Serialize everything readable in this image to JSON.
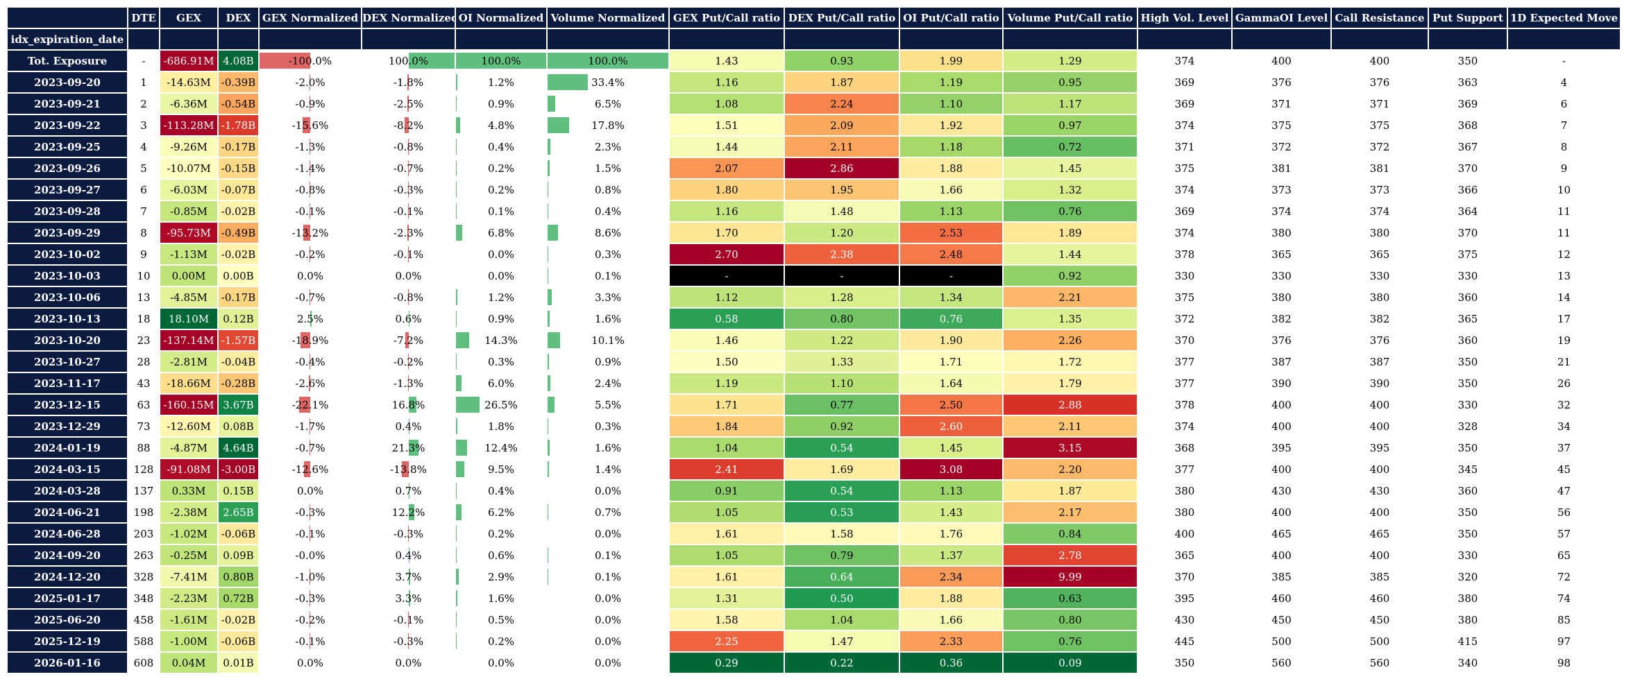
{
  "table": {
    "index_name": "idx_expiration_date",
    "columns": [
      "DTE",
      "GEX",
      "DEX",
      "GEX Normalized",
      "DEX Normalized",
      "OI Normalized",
      "Volume Normalized",
      "GEX Put/Call ratio",
      "DEX Put/Call ratio",
      "OI Put/Call ratio",
      "Volume Put/Call ratio",
      "High Vol. Level",
      "GammaOI Level",
      "Call Resistance",
      "Put Support",
      "1D Expected Move"
    ],
    "rows": [
      {
        "idx": "Tot. Exposure",
        "dte": "-",
        "gex": "-686.91M",
        "dex": "4.08B",
        "gexn": "-100.0%",
        "dexn": "100.0%",
        "oin": "100.0%",
        "voln": "100.0%",
        "gpc": "1.43",
        "dpc": "0.93",
        "opc": "1.99",
        "vpc": "1.29",
        "hvl": "374",
        "goi": "400",
        "cr": "400",
        "ps": "350",
        "em": "-",
        "gexv": -686.91,
        "dexv": 4.08,
        "gexnv": -100.0,
        "dexnv": 100.0,
        "oinv": 100.0,
        "volnv": 100.0,
        "gpcv": 1.43,
        "dpcv": 0.93,
        "opcv": 1.99,
        "vpcv": 1.29
      },
      {
        "idx": "2023-09-20",
        "dte": "1",
        "gex": "-14.63M",
        "dex": "-0.39B",
        "gexn": "-2.0%",
        "dexn": "-1.8%",
        "oin": "1.2%",
        "voln": "33.4%",
        "gpc": "1.16",
        "dpc": "1.87",
        "opc": "1.19",
        "vpc": "0.95",
        "hvl": "369",
        "goi": "376",
        "cr": "376",
        "ps": "363",
        "em": "4",
        "gexv": -14.63,
        "dexv": -0.39,
        "gexnv": -2.0,
        "dexnv": -1.8,
        "oinv": 1.2,
        "volnv": 33.4,
        "gpcv": 1.16,
        "dpcv": 1.87,
        "opcv": 1.19,
        "vpcv": 0.95
      },
      {
        "idx": "2023-09-21",
        "dte": "2",
        "gex": "-6.36M",
        "dex": "-0.54B",
        "gexn": "-0.9%",
        "dexn": "-2.5%",
        "oin": "0.9%",
        "voln": "6.5%",
        "gpc": "1.08",
        "dpc": "2.24",
        "opc": "1.10",
        "vpc": "1.17",
        "hvl": "369",
        "goi": "371",
        "cr": "371",
        "ps": "369",
        "em": "6",
        "gexv": -6.36,
        "dexv": -0.54,
        "gexnv": -0.9,
        "dexnv": -2.5,
        "oinv": 0.9,
        "volnv": 6.5,
        "gpcv": 1.08,
        "dpcv": 2.24,
        "opcv": 1.1,
        "vpcv": 1.17
      },
      {
        "idx": "2023-09-22",
        "dte": "3",
        "gex": "-113.28M",
        "dex": "-1.78B",
        "gexn": "-15.6%",
        "dexn": "-8.2%",
        "oin": "4.8%",
        "voln": "17.8%",
        "gpc": "1.51",
        "dpc": "2.09",
        "opc": "1.92",
        "vpc": "0.97",
        "hvl": "374",
        "goi": "375",
        "cr": "375",
        "ps": "368",
        "em": "7",
        "gexv": -113.28,
        "dexv": -1.78,
        "gexnv": -15.6,
        "dexnv": -8.2,
        "oinv": 4.8,
        "volnv": 17.8,
        "gpcv": 1.51,
        "dpcv": 2.09,
        "opcv": 1.92,
        "vpcv": 0.97
      },
      {
        "idx": "2023-09-25",
        "dte": "4",
        "gex": "-9.26M",
        "dex": "-0.17B",
        "gexn": "-1.3%",
        "dexn": "-0.8%",
        "oin": "0.4%",
        "voln": "2.3%",
        "gpc": "1.44",
        "dpc": "2.11",
        "opc": "1.18",
        "vpc": "0.72",
        "hvl": "371",
        "goi": "372",
        "cr": "372",
        "ps": "367",
        "em": "8",
        "gexv": -9.26,
        "dexv": -0.17,
        "gexnv": -1.3,
        "dexnv": -0.8,
        "oinv": 0.4,
        "volnv": 2.3,
        "gpcv": 1.44,
        "dpcv": 2.11,
        "opcv": 1.18,
        "vpcv": 0.72
      },
      {
        "idx": "2023-09-26",
        "dte": "5",
        "gex": "-10.07M",
        "dex": "-0.15B",
        "gexn": "-1.4%",
        "dexn": "-0.7%",
        "oin": "0.2%",
        "voln": "1.5%",
        "gpc": "2.07",
        "dpc": "2.86",
        "opc": "1.88",
        "vpc": "1.45",
        "hvl": "375",
        "goi": "381",
        "cr": "381",
        "ps": "370",
        "em": "9",
        "gexv": -10.07,
        "dexv": -0.15,
        "gexnv": -1.4,
        "dexnv": -0.7,
        "oinv": 0.2,
        "volnv": 1.5,
        "gpcv": 2.07,
        "dpcv": 2.86,
        "opcv": 1.88,
        "vpcv": 1.45
      },
      {
        "idx": "2023-09-27",
        "dte": "6",
        "gex": "-6.03M",
        "dex": "-0.07B",
        "gexn": "-0.8%",
        "dexn": "-0.3%",
        "oin": "0.2%",
        "voln": "0.8%",
        "gpc": "1.80",
        "dpc": "1.95",
        "opc": "1.66",
        "vpc": "1.32",
        "hvl": "374",
        "goi": "373",
        "cr": "373",
        "ps": "366",
        "em": "10",
        "gexv": -6.03,
        "dexv": -0.07,
        "gexnv": -0.8,
        "dexnv": -0.3,
        "oinv": 0.2,
        "volnv": 0.8,
        "gpcv": 1.8,
        "dpcv": 1.95,
        "opcv": 1.66,
        "vpcv": 1.32
      },
      {
        "idx": "2023-09-28",
        "dte": "7",
        "gex": "-0.85M",
        "dex": "-0.02B",
        "gexn": "-0.1%",
        "dexn": "-0.1%",
        "oin": "0.1%",
        "voln": "0.4%",
        "gpc": "1.16",
        "dpc": "1.48",
        "opc": "1.13",
        "vpc": "0.76",
        "hvl": "369",
        "goi": "374",
        "cr": "374",
        "ps": "364",
        "em": "11",
        "gexv": -0.85,
        "dexv": -0.02,
        "gexnv": -0.1,
        "dexnv": -0.1,
        "oinv": 0.1,
        "volnv": 0.4,
        "gpcv": 1.16,
        "dpcv": 1.48,
        "opcv": 1.13,
        "vpcv": 0.76
      },
      {
        "idx": "2023-09-29",
        "dte": "8",
        "gex": "-95.73M",
        "dex": "-0.49B",
        "gexn": "-13.2%",
        "dexn": "-2.3%",
        "oin": "6.8%",
        "voln": "8.6%",
        "gpc": "1.70",
        "dpc": "1.20",
        "opc": "2.53",
        "vpc": "1.89",
        "hvl": "374",
        "goi": "380",
        "cr": "380",
        "ps": "370",
        "em": "11",
        "gexv": -95.73,
        "dexv": -0.49,
        "gexnv": -13.2,
        "dexnv": -2.3,
        "oinv": 6.8,
        "volnv": 8.6,
        "gpcv": 1.7,
        "dpcv": 1.2,
        "opcv": 2.53,
        "vpcv": 1.89
      },
      {
        "idx": "2023-10-02",
        "dte": "9",
        "gex": "-1.13M",
        "dex": "-0.02B",
        "gexn": "-0.2%",
        "dexn": "-0.1%",
        "oin": "0.0%",
        "voln": "0.3%",
        "gpc": "2.70",
        "dpc": "2.38",
        "opc": "2.48",
        "vpc": "1.44",
        "hvl": "378",
        "goi": "365",
        "cr": "365",
        "ps": "375",
        "em": "12",
        "gexv": -1.13,
        "dexv": -0.02,
        "gexnv": -0.2,
        "dexnv": -0.1,
        "oinv": 0.0,
        "volnv": 0.3,
        "gpcv": 2.7,
        "dpcv": 2.38,
        "opcv": 2.48,
        "vpcv": 1.44
      },
      {
        "idx": "2023-10-03",
        "dte": "10",
        "gex": "0.00M",
        "dex": "0.00B",
        "gexn": "0.0%",
        "dexn": "0.0%",
        "oin": "0.0%",
        "voln": "0.1%",
        "gpc": "-",
        "dpc": "-",
        "opc": "-",
        "vpc": "0.92",
        "hvl": "330",
        "goi": "330",
        "cr": "330",
        "ps": "330",
        "em": "13",
        "gexv": 0.0,
        "dexv": 0.0,
        "gexnv": 0.0,
        "dexnv": 0.0,
        "oinv": 0.0,
        "volnv": 0.1,
        "gpcv": null,
        "dpcv": null,
        "opcv": null,
        "vpcv": 0.92
      },
      {
        "idx": "2023-10-06",
        "dte": "13",
        "gex": "-4.85M",
        "dex": "-0.17B",
        "gexn": "-0.7%",
        "dexn": "-0.8%",
        "oin": "1.2%",
        "voln": "3.3%",
        "gpc": "1.12",
        "dpc": "1.28",
        "opc": "1.34",
        "vpc": "2.21",
        "hvl": "375",
        "goi": "380",
        "cr": "380",
        "ps": "360",
        "em": "14",
        "gexv": -4.85,
        "dexv": -0.17,
        "gexnv": -0.7,
        "dexnv": -0.8,
        "oinv": 1.2,
        "volnv": 3.3,
        "gpcv": 1.12,
        "dpcv": 1.28,
        "opcv": 1.34,
        "vpcv": 2.21
      },
      {
        "idx": "2023-10-13",
        "dte": "18",
        "gex": "18.10M",
        "dex": "0.12B",
        "gexn": "2.5%",
        "dexn": "0.6%",
        "oin": "0.9%",
        "voln": "1.6%",
        "gpc": "0.58",
        "dpc": "0.80",
        "opc": "0.76",
        "vpc": "1.35",
        "hvl": "372",
        "goi": "382",
        "cr": "382",
        "ps": "365",
        "em": "17",
        "gexv": 18.1,
        "dexv": 0.12,
        "gexnv": 2.5,
        "dexnv": 0.6,
        "oinv": 0.9,
        "volnv": 1.6,
        "gpcv": 0.58,
        "dpcv": 0.8,
        "opcv": 0.76,
        "vpcv": 1.35
      },
      {
        "idx": "2023-10-20",
        "dte": "23",
        "gex": "-137.14M",
        "dex": "-1.57B",
        "gexn": "-18.9%",
        "dexn": "-7.2%",
        "oin": "14.3%",
        "voln": "10.1%",
        "gpc": "1.46",
        "dpc": "1.22",
        "opc": "1.90",
        "vpc": "2.26",
        "hvl": "370",
        "goi": "376",
        "cr": "376",
        "ps": "360",
        "em": "19",
        "gexv": -137.14,
        "dexv": -1.57,
        "gexnv": -18.9,
        "dexnv": -7.2,
        "oinv": 14.3,
        "volnv": 10.1,
        "gpcv": 1.46,
        "dpcv": 1.22,
        "opcv": 1.9,
        "vpcv": 2.26
      },
      {
        "idx": "2023-10-27",
        "dte": "28",
        "gex": "-2.81M",
        "dex": "-0.04B",
        "gexn": "-0.4%",
        "dexn": "-0.2%",
        "oin": "0.3%",
        "voln": "0.9%",
        "gpc": "1.50",
        "dpc": "1.33",
        "opc": "1.71",
        "vpc": "1.72",
        "hvl": "377",
        "goi": "387",
        "cr": "387",
        "ps": "350",
        "em": "21",
        "gexv": -2.81,
        "dexv": -0.04,
        "gexnv": -0.4,
        "dexnv": -0.2,
        "oinv": 0.3,
        "volnv": 0.9,
        "gpcv": 1.5,
        "dpcv": 1.33,
        "opcv": 1.71,
        "vpcv": 1.72
      },
      {
        "idx": "2023-11-17",
        "dte": "43",
        "gex": "-18.66M",
        "dex": "-0.28B",
        "gexn": "-2.6%",
        "dexn": "-1.3%",
        "oin": "6.0%",
        "voln": "2.4%",
        "gpc": "1.19",
        "dpc": "1.10",
        "opc": "1.64",
        "vpc": "1.79",
        "hvl": "377",
        "goi": "390",
        "cr": "390",
        "ps": "350",
        "em": "26",
        "gexv": -18.66,
        "dexv": -0.28,
        "gexnv": -2.6,
        "dexnv": -1.3,
        "oinv": 6.0,
        "volnv": 2.4,
        "gpcv": 1.19,
        "dpcv": 1.1,
        "opcv": 1.64,
        "vpcv": 1.79
      },
      {
        "idx": "2023-12-15",
        "dte": "63",
        "gex": "-160.15M",
        "dex": "3.67B",
        "gexn": "-22.1%",
        "dexn": "16.8%",
        "oin": "26.5%",
        "voln": "5.5%",
        "gpc": "1.71",
        "dpc": "0.77",
        "opc": "2.50",
        "vpc": "2.88",
        "hvl": "378",
        "goi": "400",
        "cr": "400",
        "ps": "330",
        "em": "32",
        "gexv": -160.15,
        "dexv": 3.67,
        "gexnv": -22.1,
        "dexnv": 16.8,
        "oinv": 26.5,
        "volnv": 5.5,
        "gpcv": 1.71,
        "dpcv": 0.77,
        "opcv": 2.5,
        "vpcv": 2.88
      },
      {
        "idx": "2023-12-29",
        "dte": "73",
        "gex": "-12.60M",
        "dex": "0.08B",
        "gexn": "-1.7%",
        "dexn": "0.4%",
        "oin": "1.8%",
        "voln": "0.3%",
        "gpc": "1.84",
        "dpc": "0.92",
        "opc": "2.60",
        "vpc": "2.11",
        "hvl": "374",
        "goi": "400",
        "cr": "400",
        "ps": "328",
        "em": "34",
        "gexv": -12.6,
        "dexv": 0.08,
        "gexnv": -1.7,
        "dexnv": 0.4,
        "oinv": 1.8,
        "volnv": 0.3,
        "gpcv": 1.84,
        "dpcv": 0.92,
        "opcv": 2.6,
        "vpcv": 2.11
      },
      {
        "idx": "2024-01-19",
        "dte": "88",
        "gex": "-4.87M",
        "dex": "4.64B",
        "gexn": "-0.7%",
        "dexn": "21.3%",
        "oin": "12.4%",
        "voln": "1.6%",
        "gpc": "1.04",
        "dpc": "0.54",
        "opc": "1.45",
        "vpc": "3.15",
        "hvl": "368",
        "goi": "395",
        "cr": "395",
        "ps": "350",
        "em": "37",
        "gexv": -4.87,
        "dexv": 4.64,
        "gexnv": -0.7,
        "dexnv": 21.3,
        "oinv": 12.4,
        "volnv": 1.6,
        "gpcv": 1.04,
        "dpcv": 0.54,
        "opcv": 1.45,
        "vpcv": 3.15
      },
      {
        "idx": "2024-03-15",
        "dte": "128",
        "gex": "-91.08M",
        "dex": "-3.00B",
        "gexn": "-12.6%",
        "dexn": "-13.8%",
        "oin": "9.5%",
        "voln": "1.4%",
        "gpc": "2.41",
        "dpc": "1.69",
        "opc": "3.08",
        "vpc": "2.20",
        "hvl": "377",
        "goi": "400",
        "cr": "400",
        "ps": "345",
        "em": "45",
        "gexv": -91.08,
        "dexv": -3.0,
        "gexnv": -12.6,
        "dexnv": -13.8,
        "oinv": 9.5,
        "volnv": 1.4,
        "gpcv": 2.41,
        "dpcv": 1.69,
        "opcv": 3.08,
        "vpcv": 2.2
      },
      {
        "idx": "2024-03-28",
        "dte": "137",
        "gex": "0.33M",
        "dex": "0.15B",
        "gexn": "0.0%",
        "dexn": "0.7%",
        "oin": "0.4%",
        "voln": "0.0%",
        "gpc": "0.91",
        "dpc": "0.54",
        "opc": "1.13",
        "vpc": "1.87",
        "hvl": "380",
        "goi": "430",
        "cr": "430",
        "ps": "360",
        "em": "47",
        "gexv": 0.33,
        "dexv": 0.15,
        "gexnv": 0.0,
        "dexnv": 0.7,
        "oinv": 0.4,
        "volnv": 0.0,
        "gpcv": 0.91,
        "dpcv": 0.54,
        "opcv": 1.13,
        "vpcv": 1.87
      },
      {
        "idx": "2024-06-21",
        "dte": "198",
        "gex": "-2.38M",
        "dex": "2.65B",
        "gexn": "-0.3%",
        "dexn": "12.2%",
        "oin": "6.2%",
        "voln": "0.7%",
        "gpc": "1.05",
        "dpc": "0.53",
        "opc": "1.43",
        "vpc": "2.17",
        "hvl": "380",
        "goi": "400",
        "cr": "400",
        "ps": "350",
        "em": "56",
        "gexv": -2.38,
        "dexv": 2.65,
        "gexnv": -0.3,
        "dexnv": 12.2,
        "oinv": 6.2,
        "volnv": 0.7,
        "gpcv": 1.05,
        "dpcv": 0.53,
        "opcv": 1.43,
        "vpcv": 2.17
      },
      {
        "idx": "2024-06-28",
        "dte": "203",
        "gex": "-1.02M",
        "dex": "-0.06B",
        "gexn": "-0.1%",
        "dexn": "-0.3%",
        "oin": "0.2%",
        "voln": "0.0%",
        "gpc": "1.61",
        "dpc": "1.58",
        "opc": "1.76",
        "vpc": "0.84",
        "hvl": "400",
        "goi": "465",
        "cr": "465",
        "ps": "350",
        "em": "57",
        "gexv": -1.02,
        "dexv": -0.06,
        "gexnv": -0.1,
        "dexnv": -0.3,
        "oinv": 0.2,
        "volnv": 0.0,
        "gpcv": 1.61,
        "dpcv": 1.58,
        "opcv": 1.76,
        "vpcv": 0.84
      },
      {
        "idx": "2024-09-20",
        "dte": "263",
        "gex": "-0.25M",
        "dex": "0.09B",
        "gexn": "-0.0%",
        "dexn": "0.4%",
        "oin": "0.6%",
        "voln": "0.1%",
        "gpc": "1.05",
        "dpc": "0.79",
        "opc": "1.37",
        "vpc": "2.78",
        "hvl": "365",
        "goi": "400",
        "cr": "400",
        "ps": "330",
        "em": "65",
        "gexv": -0.25,
        "dexv": 0.09,
        "gexnv": 0.0,
        "dexnv": 0.4,
        "oinv": 0.6,
        "volnv": 0.1,
        "gpcv": 1.05,
        "dpcv": 0.79,
        "opcv": 1.37,
        "vpcv": 2.78
      },
      {
        "idx": "2024-12-20",
        "dte": "328",
        "gex": "-7.41M",
        "dex": "0.80B",
        "gexn": "-1.0%",
        "dexn": "3.7%",
        "oin": "2.9%",
        "voln": "0.1%",
        "gpc": "1.61",
        "dpc": "0.64",
        "opc": "2.34",
        "vpc": "9.99",
        "hvl": "370",
        "goi": "385",
        "cr": "385",
        "ps": "320",
        "em": "72",
        "gexv": -7.41,
        "dexv": 0.8,
        "gexnv": -1.0,
        "dexnv": 3.7,
        "oinv": 2.9,
        "volnv": 0.1,
        "gpcv": 1.61,
        "dpcv": 0.64,
        "opcv": 2.34,
        "vpcv": 9.99
      },
      {
        "idx": "2025-01-17",
        "dte": "348",
        "gex": "-2.23M",
        "dex": "0.72B",
        "gexn": "-0.3%",
        "dexn": "3.3%",
        "oin": "1.6%",
        "voln": "0.0%",
        "gpc": "1.31",
        "dpc": "0.50",
        "opc": "1.88",
        "vpc": "0.63",
        "hvl": "395",
        "goi": "460",
        "cr": "460",
        "ps": "380",
        "em": "74",
        "gexv": -2.23,
        "dexv": 0.72,
        "gexnv": -0.3,
        "dexnv": 3.3,
        "oinv": 1.6,
        "volnv": 0.0,
        "gpcv": 1.31,
        "dpcv": 0.5,
        "opcv": 1.88,
        "vpcv": 0.63
      },
      {
        "idx": "2025-06-20",
        "dte": "458",
        "gex": "-1.61M",
        "dex": "-0.02B",
        "gexn": "-0.2%",
        "dexn": "-0.1%",
        "oin": "0.5%",
        "voln": "0.0%",
        "gpc": "1.58",
        "dpc": "1.04",
        "opc": "1.66",
        "vpc": "0.80",
        "hvl": "430",
        "goi": "450",
        "cr": "450",
        "ps": "380",
        "em": "85",
        "gexv": -1.61,
        "dexv": -0.02,
        "gexnv": -0.2,
        "dexnv": -0.1,
        "oinv": 0.5,
        "volnv": 0.0,
        "gpcv": 1.58,
        "dpcv": 1.04,
        "opcv": 1.66,
        "vpcv": 0.8
      },
      {
        "idx": "2025-12-19",
        "dte": "588",
        "gex": "-1.00M",
        "dex": "-0.06B",
        "gexn": "-0.1%",
        "dexn": "-0.3%",
        "oin": "0.2%",
        "voln": "0.0%",
        "gpc": "2.25",
        "dpc": "1.47",
        "opc": "2.33",
        "vpc": "0.76",
        "hvl": "445",
        "goi": "500",
        "cr": "500",
        "ps": "415",
        "em": "97",
        "gexv": -1.0,
        "dexv": -0.06,
        "gexnv": -0.1,
        "dexnv": -0.3,
        "oinv": 0.2,
        "volnv": 0.0,
        "gpcv": 2.25,
        "dpcv": 1.47,
        "opcv": 2.33,
        "vpcv": 0.76
      },
      {
        "idx": "2026-01-16",
        "dte": "608",
        "gex": "0.04M",
        "dex": "0.01B",
        "gexn": "0.0%",
        "dexn": "0.0%",
        "oin": "0.0%",
        "voln": "0.0%",
        "gpc": "0.29",
        "dpc": "0.22",
        "opc": "0.36",
        "vpc": "0.09",
        "hvl": "350",
        "goi": "560",
        "cr": "560",
        "ps": "340",
        "em": "98",
        "gexv": 0.04,
        "dexv": 0.01,
        "gexnv": 0.0,
        "dexnv": 0.0,
        "oinv": 0.0,
        "volnv": 0.0,
        "gpcv": 0.29,
        "dpcv": 0.22,
        "opcv": 0.36,
        "vpcv": 0.09
      }
    ]
  },
  "colors": {
    "header_bg": "#0b1a3f",
    "bar_negative": "#e06666",
    "bar_positive": "#5fbf7f",
    "missing_bg": "#000000"
  }
}
